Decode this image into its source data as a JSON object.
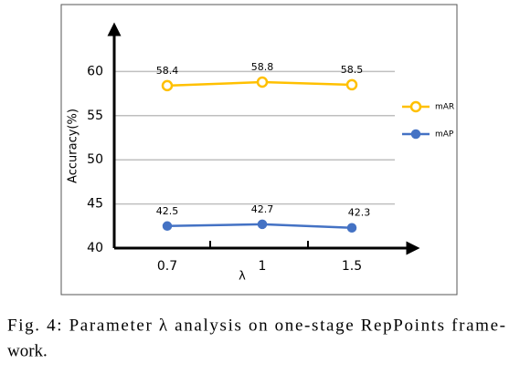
{
  "chart_data": {
    "type": "line",
    "x_label": "λ",
    "y_label": "Accuracy(%)",
    "categories": [
      "0.7",
      "1",
      "1.5"
    ],
    "series": [
      {
        "name": "mAR",
        "color": "#FFC000",
        "values": [
          58.4,
          58.8,
          58.5
        ]
      },
      {
        "name": "mAP",
        "color": "#4472C4",
        "values": [
          42.5,
          42.7,
          42.3
        ]
      }
    ],
    "ylim": [
      40,
      65
    ],
    "yticks": [
      40,
      45,
      50,
      55,
      60
    ],
    "grid": true,
    "legend": "right"
  },
  "caption": [
    "Fig. 4: Parameter λ analysis on one-stage RepPoints frame-",
    "work."
  ]
}
